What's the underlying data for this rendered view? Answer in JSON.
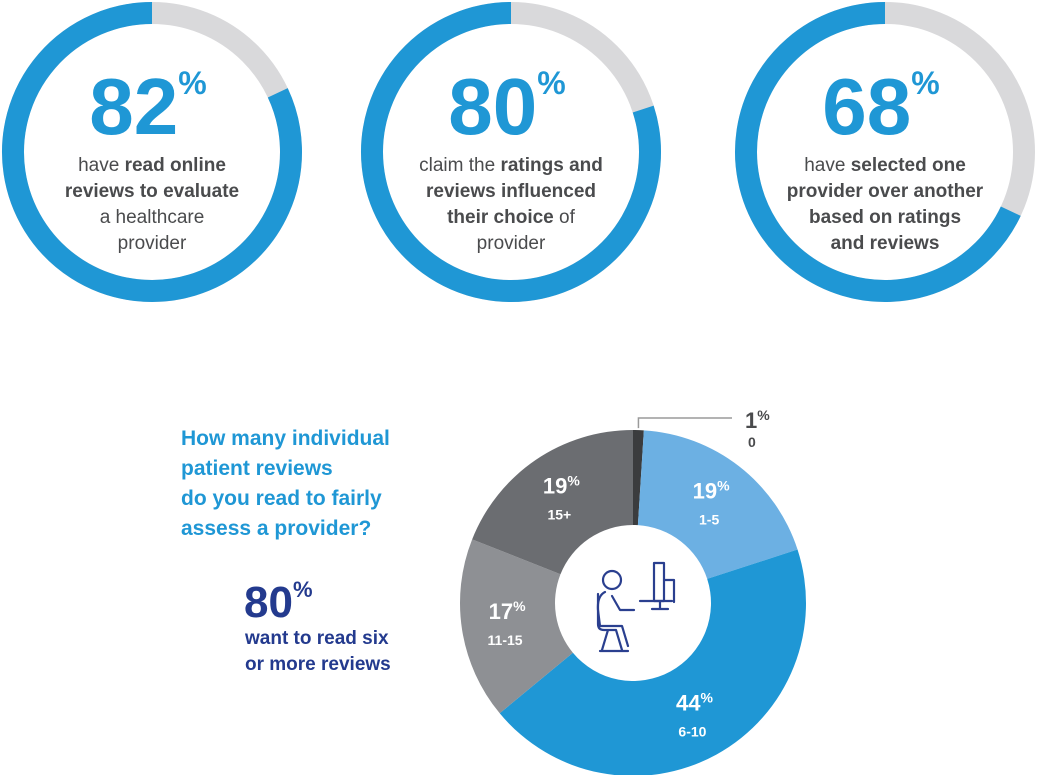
{
  "chart_data": [
    {
      "type": "gauge",
      "value": 82,
      "value_label": "82%",
      "color": "#1f97d5",
      "track_color": "#d9d9db",
      "caption_lines": [
        [
          {
            "text": "have ",
            "bold": false
          },
          {
            "text": "read online",
            "bold": true
          }
        ],
        [
          {
            "text": "reviews to evaluate",
            "bold": true
          }
        ],
        [
          {
            "text": "a healthcare",
            "bold": false
          }
        ],
        [
          {
            "text": "provider",
            "bold": false
          }
        ]
      ]
    },
    {
      "type": "gauge",
      "value": 80,
      "value_label": "80%",
      "color": "#1f97d5",
      "track_color": "#d9d9db",
      "caption_lines": [
        [
          {
            "text": "claim the ",
            "bold": false
          },
          {
            "text": "ratings and",
            "bold": true
          }
        ],
        [
          {
            "text": "reviews influenced",
            "bold": true
          }
        ],
        [
          {
            "text": "their choice",
            "bold": true
          },
          {
            "text": " of",
            "bold": false
          }
        ],
        [
          {
            "text": "provider",
            "bold": false
          }
        ]
      ]
    },
    {
      "type": "gauge",
      "value": 68,
      "value_label": "68%",
      "color": "#1f97d5",
      "track_color": "#d9d9db",
      "caption_lines": [
        [
          {
            "text": "have ",
            "bold": false
          },
          {
            "text": "selected one",
            "bold": true
          }
        ],
        [
          {
            "text": "provider over another",
            "bold": true
          }
        ],
        [
          {
            "text": "based on ratings",
            "bold": true
          }
        ],
        [
          {
            "text": "and reviews",
            "bold": true
          }
        ]
      ]
    },
    {
      "type": "pie",
      "question_lines": [
        "How many individual",
        "patient reviews",
        "do you read to fairly",
        "assess a provider?"
      ],
      "callout": {
        "label": "80%",
        "lines": [
          "want to read six",
          "or more reviews"
        ]
      },
      "categories": [
        "0",
        "1-5",
        "6-10",
        "11-15",
        "15+"
      ],
      "values": [
        1,
        19,
        44,
        17,
        19
      ],
      "value_labels": [
        "1%",
        "19%",
        "44%",
        "17%",
        "19%"
      ],
      "colors": [
        "#3b3c3e",
        "#6cb0e3",
        "#1f97d5",
        "#8e9094",
        "#6b6d71"
      ]
    }
  ]
}
